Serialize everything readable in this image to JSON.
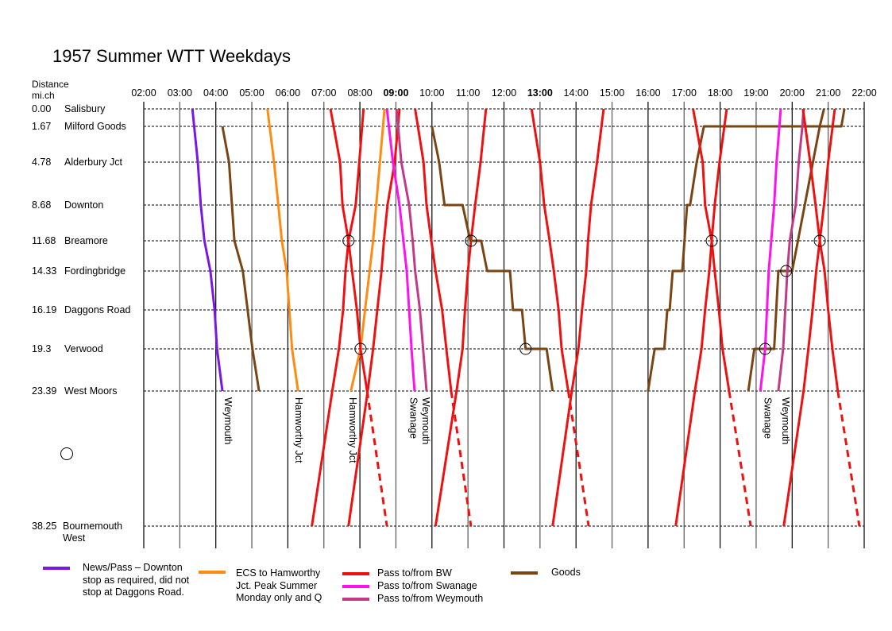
{
  "title": "1957 Summer WTT Weekdays",
  "distance_header": [
    "Distance",
    "mi.ch"
  ],
  "time_axis": {
    "ticks": [
      "02:00",
      "03:00",
      "04:00",
      "05:00",
      "06:00",
      "07:00",
      "08:00",
      "09:00",
      "10:00",
      "11:00",
      "12:00",
      "13:00",
      "14:00",
      "15:00",
      "16:00",
      "17:00",
      "18:00",
      "19:00",
      "20:00",
      "21:00",
      "22:00"
    ],
    "bold_ticks": [
      "09:00",
      "13:00"
    ]
  },
  "stations": [
    {
      "mileage": "0.00",
      "name": "Salisbury"
    },
    {
      "mileage": "1.67",
      "name": "Milford Goods"
    },
    {
      "mileage": "4.78",
      "name": "Alderbury Jct"
    },
    {
      "mileage": "8.68",
      "name": "Downton"
    },
    {
      "mileage": "11.68",
      "name": "Breamore"
    },
    {
      "mileage": "14.33",
      "name": "Fordingbridge"
    },
    {
      "mileage": "16.19",
      "name": "Daggons Road"
    },
    {
      "mileage": "19.3",
      "name": "Verwood"
    },
    {
      "mileage": "23.39",
      "name": "West Moors"
    },
    {
      "mileage": "38.25",
      "name": "Bournemouth",
      "name2": "West"
    }
  ],
  "colors": {
    "news": "#7A17E6",
    "ecs": "#FF8C10",
    "bw": "#F01010",
    "swanage": "#FF10F0",
    "weymouth": "#C23A86",
    "goods": "#7A4512"
  },
  "trains": [
    {
      "type": "news",
      "points": [
        [
          "03:21",
          0
        ],
        [
          "03:30",
          2
        ],
        [
          "03:35",
          3
        ],
        [
          "03:41",
          4
        ],
        [
          "03:51",
          5
        ],
        [
          "03:58",
          6
        ],
        [
          "04:02",
          7
        ],
        [
          "04:11",
          8
        ]
      ]
    },
    {
      "type": "goods",
      "points": [
        [
          "04:11",
          1
        ],
        [
          "04:22",
          2
        ],
        [
          "04:31",
          4
        ],
        [
          "04:45",
          5
        ],
        [
          "05:01",
          7
        ],
        [
          "05:12",
          8
        ]
      ]
    },
    {
      "type": "ecs",
      "points": [
        [
          "05:26",
          0
        ],
        [
          "05:37",
          2
        ],
        [
          "05:50",
          4
        ],
        [
          "05:58",
          5
        ],
        [
          "06:07",
          7
        ],
        [
          "06:17",
          8
        ]
      ]
    },
    {
      "type": "ecs",
      "points": [
        [
          "07:45",
          8
        ],
        [
          "08:01",
          7
        ],
        [
          "08:22",
          4
        ],
        [
          "08:41",
          0
        ]
      ]
    },
    {
      "type": "bw",
      "points": [
        [
          "07:11",
          0
        ],
        [
          "07:27",
          2
        ],
        [
          "07:31",
          3
        ],
        [
          "07:41",
          4
        ],
        [
          "07:47",
          5
        ],
        [
          "07:55",
          6
        ],
        [
          "08:01",
          7
        ],
        [
          "08:12",
          8
        ]
      ],
      "dashed_to": [
        "08:45",
        9
      ]
    },
    {
      "type": "bw",
      "points": [
        [
          "06:40",
          9
        ],
        [
          "07:14",
          8
        ],
        [
          "07:25",
          7
        ],
        [
          "07:32",
          6
        ],
        [
          "07:36",
          5
        ],
        [
          "07:41",
          4
        ],
        [
          "07:53",
          3
        ],
        [
          "07:59",
          2
        ],
        [
          "08:06",
          0
        ]
      ]
    },
    {
      "type": "bw",
      "points": [
        [
          "07:41",
          9
        ],
        [
          "08:13",
          8
        ],
        [
          "08:22",
          7
        ],
        [
          "08:29",
          6
        ],
        [
          "08:36",
          5
        ],
        [
          "08:40",
          4
        ],
        [
          "08:46",
          3
        ],
        [
          "08:58",
          2
        ],
        [
          "09:06",
          0
        ]
      ]
    },
    {
      "type": "swanage",
      "points": [
        [
          "08:45",
          0
        ],
        [
          "08:55",
          2
        ],
        [
          "09:06",
          3
        ],
        [
          "09:18",
          5
        ],
        [
          "09:26",
          7
        ],
        [
          "09:31",
          8
        ]
      ]
    },
    {
      "type": "weymouth",
      "points": [
        [
          "09:01",
          0
        ],
        [
          "09:09",
          2
        ],
        [
          "09:22",
          3
        ],
        [
          "09:28",
          4
        ],
        [
          "09:32",
          5
        ],
        [
          "09:40",
          6
        ],
        [
          "09:51",
          8
        ]
      ]
    },
    {
      "type": "bw",
      "points": [
        [
          "09:32",
          0
        ],
        [
          "09:46",
          2
        ],
        [
          "09:51",
          3
        ],
        [
          "09:59",
          4
        ],
        [
          "10:06",
          5
        ],
        [
          "10:17",
          6
        ],
        [
          "10:24",
          7
        ],
        [
          "10:32",
          8
        ]
      ],
      "dashed_to": [
        "11:05",
        9
      ]
    },
    {
      "type": "bw",
      "points": [
        [
          "10:06",
          9
        ],
        [
          "10:41",
          8
        ],
        [
          "10:51",
          7
        ],
        [
          "10:55",
          6
        ],
        [
          "11:00",
          5
        ],
        [
          "11:05",
          4
        ],
        [
          "11:12",
          3
        ],
        [
          "11:21",
          2
        ],
        [
          "11:30",
          0
        ]
      ]
    },
    {
      "type": "goods",
      "points": [
        [
          "10:00",
          1
        ],
        [
          "10:12",
          2
        ],
        [
          "10:21",
          3
        ],
        [
          "10:51",
          3
        ],
        [
          "11:04",
          4
        ],
        [
          "11:22",
          4
        ],
        [
          "11:32",
          5
        ],
        [
          "12:10",
          5
        ],
        [
          "12:15",
          6
        ],
        [
          "12:30",
          6
        ],
        [
          "12:36",
          7
        ],
        [
          "13:11",
          7
        ],
        [
          "13:21",
          8
        ]
      ]
    },
    {
      "type": "bw",
      "points": [
        [
          "12:46",
          0
        ],
        [
          "13:00",
          2
        ],
        [
          "13:07",
          3
        ],
        [
          "13:16",
          4
        ],
        [
          "13:23",
          5
        ],
        [
          "13:31",
          6
        ],
        [
          "13:36",
          7
        ],
        [
          "13:47",
          8
        ]
      ],
      "dashed_to": [
        "14:21",
        9
      ]
    },
    {
      "type": "bw",
      "points": [
        [
          "13:21",
          9
        ],
        [
          "13:53",
          8
        ],
        [
          "14:04",
          7
        ],
        [
          "14:10",
          6
        ],
        [
          "14:17",
          5
        ],
        [
          "14:20",
          4
        ],
        [
          "14:25",
          3
        ],
        [
          "14:35",
          2
        ],
        [
          "14:46",
          0
        ]
      ]
    },
    {
      "type": "goods",
      "points": [
        [
          "16:00",
          8
        ],
        [
          "16:11",
          7
        ],
        [
          "16:27",
          7
        ],
        [
          "16:32",
          6
        ],
        [
          "16:36",
          6
        ],
        [
          "16:41",
          5
        ],
        [
          "16:57",
          5
        ],
        [
          "17:05",
          3
        ],
        [
          "17:10",
          3
        ],
        [
          "17:21",
          2
        ],
        [
          "17:33",
          1
        ],
        [
          "21:22",
          1
        ],
        [
          "21:27",
          0
        ]
      ]
    },
    {
      "type": "bw",
      "points": [
        [
          "17:15",
          0
        ],
        [
          "17:31",
          2
        ],
        [
          "17:35",
          3
        ],
        [
          "17:46",
          4
        ],
        [
          "17:51",
          5
        ],
        [
          "17:58",
          6
        ],
        [
          "18:04",
          7
        ],
        [
          "18:15",
          8
        ]
      ],
      "dashed_to": [
        "18:51",
        9
      ]
    },
    {
      "type": "bw",
      "points": [
        [
          "16:46",
          9
        ],
        [
          "17:18",
          8
        ],
        [
          "17:29",
          7
        ],
        [
          "17:35",
          6
        ],
        [
          "17:42",
          5
        ],
        [
          "17:46",
          4
        ],
        [
          "17:51",
          3
        ],
        [
          "17:59",
          2
        ],
        [
          "18:11",
          0
        ]
      ]
    },
    {
      "type": "goods",
      "points": [
        [
          "18:47",
          8
        ],
        [
          "18:57",
          7
        ],
        [
          "19:30",
          7
        ],
        [
          "19:37",
          5
        ],
        [
          "20:00",
          5
        ],
        [
          "20:46",
          1
        ],
        [
          "20:53",
          0
        ]
      ]
    },
    {
      "type": "swanage",
      "points": [
        [
          "19:07",
          8
        ],
        [
          "19:15",
          7
        ],
        [
          "19:21",
          5
        ],
        [
          "19:30",
          3
        ],
        [
          "19:34",
          2
        ],
        [
          "19:41",
          0
        ]
      ]
    },
    {
      "type": "weymouth",
      "points": [
        [
          "19:37",
          8
        ],
        [
          "19:45",
          7
        ],
        [
          "19:52",
          5
        ],
        [
          "19:56",
          4
        ],
        [
          "20:06",
          3
        ],
        [
          "20:11",
          2
        ],
        [
          "20:17",
          1
        ],
        [
          "20:19",
          0
        ]
      ]
    },
    {
      "type": "bw",
      "points": [
        [
          "20:18",
          0
        ],
        [
          "20:30",
          2
        ],
        [
          "20:39",
          3
        ],
        [
          "20:46",
          4
        ],
        [
          "20:54",
          5
        ],
        [
          "21:00",
          6
        ],
        [
          "21:07",
          7
        ],
        [
          "21:16",
          8
        ]
      ],
      "dashed_to": [
        "21:52",
        9
      ]
    },
    {
      "type": "bw",
      "points": [
        [
          "19:46",
          9
        ],
        [
          "20:19",
          8
        ],
        [
          "20:27",
          7
        ],
        [
          "20:34",
          6
        ],
        [
          "20:40",
          5
        ],
        [
          "20:46",
          4
        ],
        [
          "20:53",
          3
        ],
        [
          "21:00",
          2
        ],
        [
          "21:11",
          0
        ]
      ]
    }
  ],
  "crossings": [
    [
      "07:41",
      4
    ],
    [
      "08:01",
      7
    ],
    [
      "11:05",
      4
    ],
    [
      "12:36",
      7
    ],
    [
      "17:46",
      4
    ],
    [
      "19:15",
      7
    ],
    [
      "19:50",
      5
    ],
    [
      "20:46",
      4
    ]
  ],
  "destination_labels": [
    {
      "text": "Weymouth",
      "at": "04:20"
    },
    {
      "text": "Hamworthy Jct",
      "at": "06:18"
    },
    {
      "text": "Hamworthy Jct",
      "at": "07:48"
    },
    {
      "text": "Swanage",
      "at": "09:29"
    },
    {
      "text": "Weymouth",
      "at": "09:50"
    },
    {
      "text": "Swanage",
      "at": "19:19"
    },
    {
      "text": "Weymouth",
      "at": "19:49"
    }
  ],
  "legend": [
    {
      "type": "news",
      "label": "News/Pass – Downton stop as required, did not stop at Daggons Road."
    },
    {
      "type": "ecs",
      "label": "ECS to Hamworthy Jct. Peak Summer Monday only and Q"
    },
    {
      "type": "bw",
      "label": "Pass to/from BW"
    },
    {
      "type": "swanage",
      "label": "Pass to/from Swanage"
    },
    {
      "type": "weymouth",
      "label": "Pass to/from Weymouth"
    },
    {
      "type": "goods",
      "label": "Goods"
    }
  ]
}
